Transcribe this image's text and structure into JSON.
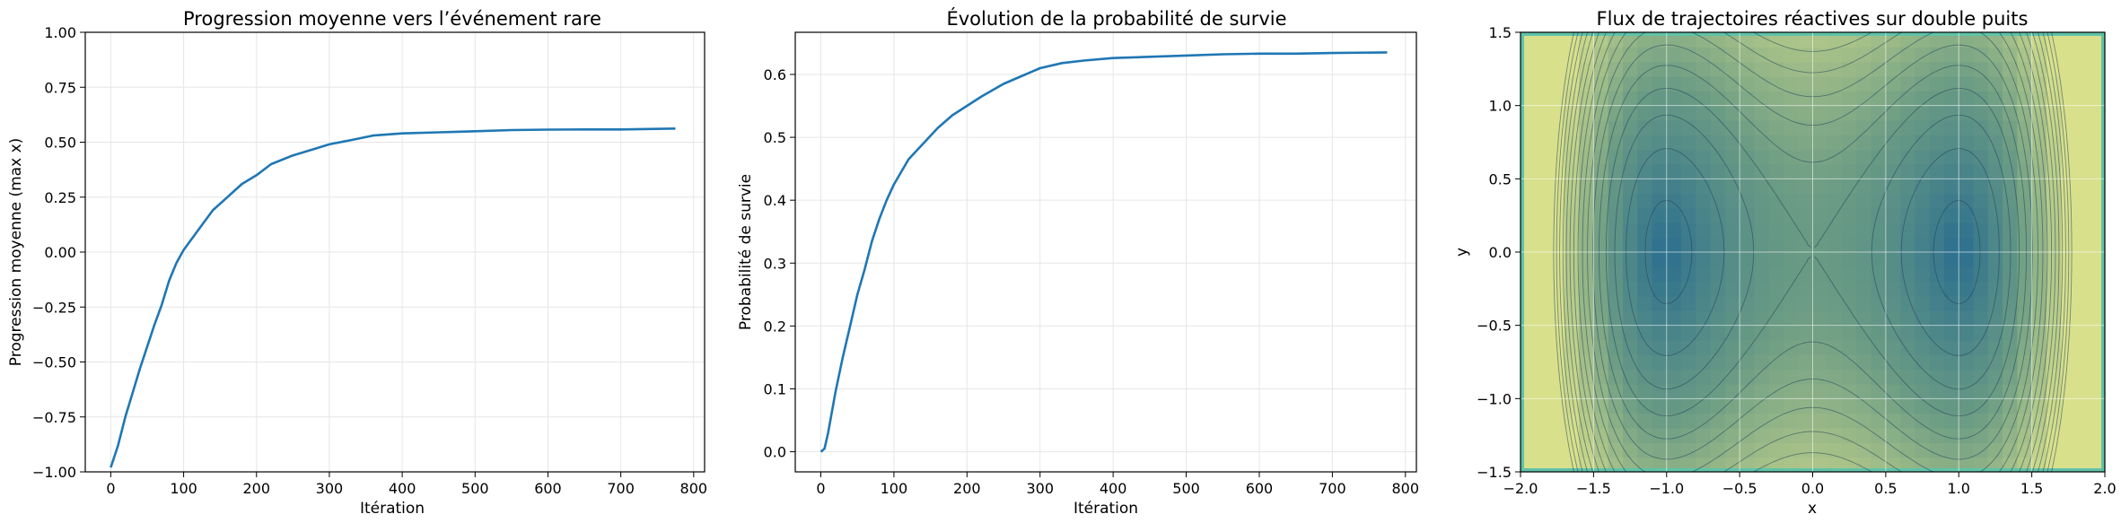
{
  "colors": {
    "line": "#1f77b4",
    "grid": "#e6e6e6",
    "axes": "#000000",
    "contour": "#1e3f5a"
  },
  "chart_data": [
    {
      "type": "line",
      "title": "Progression moyenne vers l’événement rare",
      "xlabel": "Itération",
      "ylabel": "Progression moyenne (max x)",
      "xlim": [
        -35,
        815
      ],
      "ylim": [
        -1.0,
        1.0
      ],
      "grid": true,
      "xticks": [
        {
          "v": 0,
          "l": "0"
        },
        {
          "v": 100,
          "l": "100"
        },
        {
          "v": 200,
          "l": "200"
        },
        {
          "v": 300,
          "l": "300"
        },
        {
          "v": 400,
          "l": "400"
        },
        {
          "v": 500,
          "l": "500"
        },
        {
          "v": 600,
          "l": "600"
        },
        {
          "v": 700,
          "l": "700"
        },
        {
          "v": 800,
          "l": "800"
        }
      ],
      "yticks": [
        {
          "v": -1.0,
          "l": "−1.00"
        },
        {
          "v": -0.75,
          "l": "−0.75"
        },
        {
          "v": -0.5,
          "l": "−0.50"
        },
        {
          "v": -0.25,
          "l": "−0.25"
        },
        {
          "v": 0.0,
          "l": "0.00"
        },
        {
          "v": 0.25,
          "l": "0.25"
        },
        {
          "v": 0.5,
          "l": "0.50"
        },
        {
          "v": 0.75,
          "l": "0.75"
        },
        {
          "v": 1.0,
          "l": "1.00"
        }
      ],
      "series": [
        {
          "x": [
            0,
            10,
            20,
            30,
            40,
            50,
            60,
            70,
            80,
            90,
            100,
            120,
            140,
            160,
            180,
            200,
            220,
            250,
            280,
            300,
            330,
            360,
            400,
            450,
            500,
            550,
            600,
            650,
            700,
            775
          ],
          "values": [
            -0.98,
            -0.88,
            -0.75,
            -0.64,
            -0.53,
            -0.43,
            -0.33,
            -0.24,
            -0.13,
            -0.05,
            0.01,
            0.1,
            0.19,
            0.25,
            0.31,
            0.35,
            0.4,
            0.44,
            0.47,
            0.49,
            0.51,
            0.53,
            0.54,
            0.545,
            0.55,
            0.555,
            0.557,
            0.558,
            0.558,
            0.562
          ]
        }
      ]
    },
    {
      "type": "line",
      "title": "Évolution de la probabilité de survie",
      "xlabel": "Itération",
      "ylabel": "Probabilité de survie",
      "xlim": [
        -35,
        815
      ],
      "ylim": [
        -0.032,
        0.667
      ],
      "grid": true,
      "xticks": [
        {
          "v": 0,
          "l": "0"
        },
        {
          "v": 100,
          "l": "100"
        },
        {
          "v": 200,
          "l": "200"
        },
        {
          "v": 300,
          "l": "300"
        },
        {
          "v": 400,
          "l": "400"
        },
        {
          "v": 500,
          "l": "500"
        },
        {
          "v": 600,
          "l": "600"
        },
        {
          "v": 700,
          "l": "700"
        },
        {
          "v": 800,
          "l": "800"
        }
      ],
      "yticks": [
        {
          "v": 0.0,
          "l": "0.0"
        },
        {
          "v": 0.1,
          "l": "0.1"
        },
        {
          "v": 0.2,
          "l": "0.2"
        },
        {
          "v": 0.3,
          "l": "0.3"
        },
        {
          "v": 0.4,
          "l": "0.4"
        },
        {
          "v": 0.5,
          "l": "0.5"
        },
        {
          "v": 0.6,
          "l": "0.6"
        }
      ],
      "series": [
        {
          "x": [
            0,
            5,
            10,
            20,
            30,
            40,
            50,
            60,
            70,
            80,
            90,
            100,
            120,
            140,
            160,
            180,
            200,
            220,
            250,
            280,
            300,
            330,
            360,
            400,
            450,
            500,
            550,
            600,
            650,
            700,
            775
          ],
          "values": [
            0.0,
            0.005,
            0.03,
            0.095,
            0.15,
            0.2,
            0.25,
            0.29,
            0.335,
            0.37,
            0.4,
            0.425,
            0.465,
            0.49,
            0.515,
            0.535,
            0.55,
            0.565,
            0.585,
            0.6,
            0.61,
            0.618,
            0.622,
            0.626,
            0.628,
            0.63,
            0.632,
            0.633,
            0.633,
            0.634,
            0.635
          ]
        }
      ]
    },
    {
      "type": "heatmap",
      "title": "Flux de trajectoires réactives sur double puits",
      "xlabel": "x",
      "ylabel": "y",
      "xlim": [
        -2.0,
        2.0
      ],
      "ylim": [
        -1.5,
        1.5
      ],
      "grid": true,
      "field": "potentiel double puits (minima en x = ±1, y = 0) avec lignes de niveau",
      "xticks": [
        {
          "v": -2.0,
          "l": "−2.0"
        },
        {
          "v": -1.5,
          "l": "−1.5"
        },
        {
          "v": -1.0,
          "l": "−1.0"
        },
        {
          "v": -0.5,
          "l": "−0.5"
        },
        {
          "v": 0.0,
          "l": "0.0"
        },
        {
          "v": 0.5,
          "l": "0.5"
        },
        {
          "v": 1.0,
          "l": "1.0"
        },
        {
          "v": 1.5,
          "l": "1.5"
        },
        {
          "v": 2.0,
          "l": "2.0"
        }
      ],
      "yticks": [
        {
          "v": -1.5,
          "l": "−1.5"
        },
        {
          "v": -1.0,
          "l": "−1.0"
        },
        {
          "v": -0.5,
          "l": "−0.5"
        },
        {
          "v": 0.0,
          "l": "0.0"
        },
        {
          "v": 0.5,
          "l": "0.5"
        },
        {
          "v": 1.0,
          "l": "1.0"
        },
        {
          "v": 1.5,
          "l": "1.5"
        }
      ],
      "contour_levels": [
        -0.9,
        -0.6,
        -0.3,
        0.0,
        0.3,
        0.6,
        0.9,
        1.2,
        1.5,
        1.8,
        2.1,
        2.4,
        2.7,
        3.0,
        3.3,
        3.6
      ],
      "colors": {
        "low": "#2a6e8f",
        "mid": "#6a9b84",
        "high": "#d8e08c"
      }
    }
  ]
}
